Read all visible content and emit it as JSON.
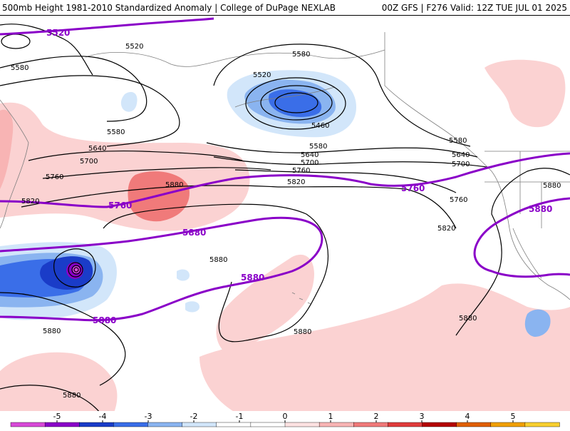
{
  "header": {
    "title_left": "500mb Height 1981-2010 Standardized Anomaly | College of DuPage NEXLAB",
    "title_right": "00Z GFS | F276 Valid: 12Z TUE JUL 01 2025"
  },
  "colors": {
    "highlight_contour": "#8a00c8",
    "height_contour": "#000000",
    "coast": "#7f7f7f"
  },
  "contour_labels": {
    "l5520a": "5520",
    "l5580a": "5580",
    "l5580b": "5580",
    "l5520b": "5520",
    "l5580c": "5580",
    "l5640a": "5640",
    "l5700a": "5700",
    "l5460": "5460",
    "l5580d": "5580",
    "l5640b": "5640",
    "l5700b": "5700",
    "l5760a": "5760",
    "l5760b": "5760",
    "l5820a": "5820",
    "l5820b": "5820",
    "l5880a": "5880",
    "l5580e": "5580",
    "l5640c": "5640",
    "l5700c": "5700",
    "l5760c": "5760",
    "l5820c": "5820",
    "l5880b": "5880",
    "l5880c": "5880",
    "l5880d": "5880",
    "l5880e": "5880",
    "l5880f": "5880",
    "l5880g": "5880"
  },
  "highlight_labels": {
    "h5520": "5520",
    "h5760a": "5760",
    "h5760b": "5760",
    "h5880a": "5880",
    "h5880b": "5880",
    "h5880c": "5880",
    "h5880d": "5880"
  },
  "colorbar": {
    "ticks": [
      "-5",
      "-4",
      "-3",
      "-2",
      "-1",
      "0",
      "1",
      "2",
      "3",
      "4",
      "5"
    ],
    "colors": [
      "#d84ad8",
      "#8a00c8",
      "#1a3cc8",
      "#3a6ee8",
      "#8ab4f0",
      "#d2e6fa",
      "#ffffff",
      "#ffffff",
      "#fde2e2",
      "#f8b4b4",
      "#f07a7a",
      "#e03c3c",
      "#b40000",
      "#e06000",
      "#f0a000",
      "#f8d030"
    ]
  }
}
